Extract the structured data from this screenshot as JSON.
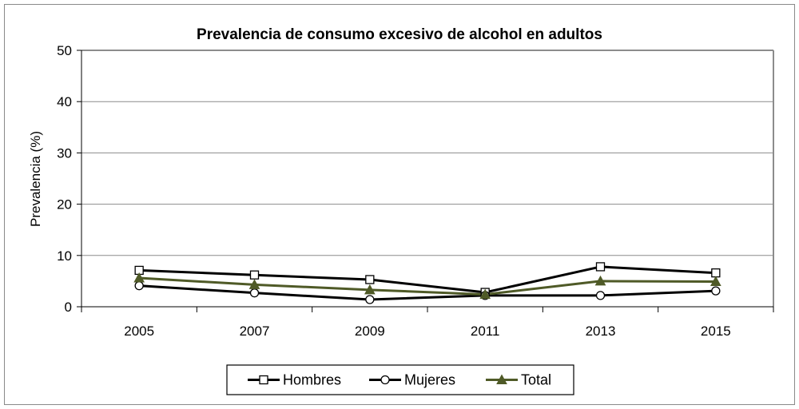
{
  "chart_data": {
    "type": "line",
    "title": "Prevalencia de consumo excesivo de alcohol en adultos",
    "xlabel": "",
    "ylabel": "Prevalencia (%)",
    "categories": [
      "2005",
      "2007",
      "2009",
      "2011",
      "2013",
      "2015"
    ],
    "ylim": [
      0,
      50
    ],
    "yticks": [
      "0",
      "10",
      "20",
      "30",
      "40",
      "50"
    ],
    "grid": true,
    "legend_position": "bottom",
    "series": [
      {
        "name": "Hombres",
        "marker": "square",
        "color": "#000000",
        "values": [
          7.1,
          6.2,
          5.3,
          2.8,
          7.8,
          6.6
        ]
      },
      {
        "name": "Mujeres",
        "marker": "circle",
        "color": "#000000",
        "values": [
          4.1,
          2.7,
          1.4,
          2.2,
          2.2,
          3.1
        ]
      },
      {
        "name": "Total",
        "marker": "triangle",
        "color": "#4f5a27",
        "values": [
          5.6,
          4.3,
          3.3,
          2.4,
          5.0,
          4.9
        ]
      }
    ]
  }
}
